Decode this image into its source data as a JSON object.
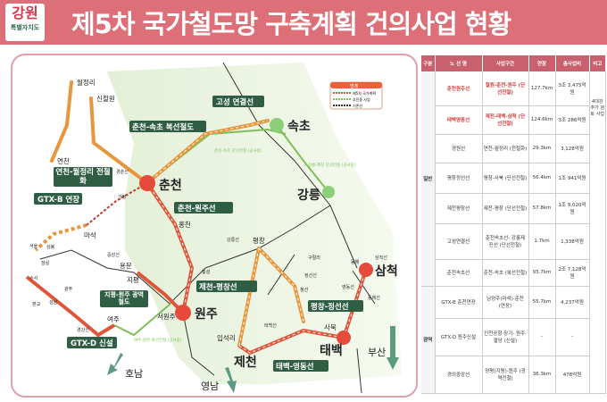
{
  "header": {
    "logo_top": "강원",
    "logo_bottom": "특별자치도",
    "title": "제5차 국가철도망 구축계획 건의사업 현황"
  },
  "legend": {
    "title": "범례",
    "items": [
      "제5차 국가계획",
      "추진중 사업",
      "기존선"
    ]
  },
  "colors": {
    "header": "#dc6f78",
    "new_line": "#e8603c",
    "existing_green": "#7fbf5a",
    "label_bg": "#2f5e45"
  },
  "map": {
    "cities": {
      "chuncheon": "춘천",
      "wonju": "원주",
      "gangneung": "강릉",
      "sokcho": "속초",
      "samcheok": "삼척",
      "taebaek": "태백",
      "jecheon": "제천"
    },
    "stations": {
      "woljeongri": "월정리",
      "sincheorwon": "신철원",
      "yeoncheon": "연천",
      "maseok": "마석",
      "hongcheon": "홍천",
      "yongmun": "용문",
      "jipyeong": "지평",
      "yeoju": "여주",
      "seowonju": "서원주",
      "pyeongchang": "평창",
      "ipseokri": "입석리",
      "sabuk": "사북",
      "jeongseon": "정선",
      "gujeolri": "구절리",
      "gapyeong": "가평",
      "donghae": "동해",
      "seoul": "서울",
      "sangbong": "상봉",
      "jamsil": "잠실",
      "suseo": "수서",
      "pangyo": "판교",
      "gyeongju": "광주",
      "seongnam": "성남",
      "wonju2": "횡성"
    },
    "line_tags": {
      "gyeongchun": "경춘선",
      "jungang": "중앙선",
      "gyeonggang": "경강선",
      "yeongdong": "영동선",
      "taebaek": "태백선",
      "jeongseon": "정선선",
      "samcheok": "삼척선",
      "donghae": "동해선",
      "gangneung": "강릉선"
    },
    "projects": [
      "고성 연결선",
      "춘천-속초 복선철도",
      "연천-월정리 전철화",
      "GTX-B 연장",
      "춘천-원주선",
      "지평-원주 광역철도",
      "제천-평창선",
      "평창-정선선",
      "GTX-D 신설",
      "태백-영동선"
    ],
    "notes": [
      "춘천-속초 단선전철 (공사중)",
      "강릉-제진 단선전철 (공사중)",
      "여주-원주 복선전철 (공사중)"
    ],
    "directions": [
      "호남",
      "영남",
      "부산"
    ]
  },
  "table": {
    "headers": [
      "구분",
      "노 선 명",
      "사업구간",
      "연장",
      "총사업비",
      "비고"
    ],
    "groups": [
      "일반",
      "광역"
    ],
    "note": "4대강 추가 검토 사업",
    "rows": [
      {
        "name": "춘천원주선",
        "section": "철원-춘천-원주 (단선전철)",
        "length": "127.7km",
        "cost": "3조 3,475억원"
      },
      {
        "name": "태백영동선",
        "section": "제천-태백-삼척 (단선전철)",
        "length": "124.6km",
        "cost": "3조 286억원"
      },
      {
        "name": "경원선",
        "section": "연천-월정리 (전철화)",
        "length": "29.3km",
        "cost": "3,128억원"
      },
      {
        "name": "평창정선선",
        "section": "평창-사북 (단선전철)",
        "length": "56.4km",
        "cost": "1조 941억원"
      },
      {
        "name": "제천평창선",
        "section": "제천-평창 (단선전철)",
        "length": "57.8km",
        "cost": "1조 9,020억원"
      },
      {
        "name": "고성연결선",
        "section": "춘천속초선- 강릉제진선 (단선전철)",
        "length": "1.7km",
        "cost": "1,338억원"
      },
      {
        "name": "춘천속초선",
        "section": "춘천-속초 (복선전철)",
        "length": "93.7km",
        "cost": "2조 7,128억원"
      },
      {
        "name": "GTX-B 춘천연장",
        "section": "남양주(마석)-춘천 (연장)",
        "length": "55.7km",
        "cost": "4,237억원"
      },
      {
        "name": "GTX-D 원주신설",
        "section": "인천공항·장기- 원주·팔당 (신설)",
        "length": "-",
        "cost": "-"
      },
      {
        "name": "경의중앙선",
        "section": "양평(지평)-원주 (광역전철)",
        "length": "36.3km",
        "cost": "478억원"
      }
    ]
  }
}
